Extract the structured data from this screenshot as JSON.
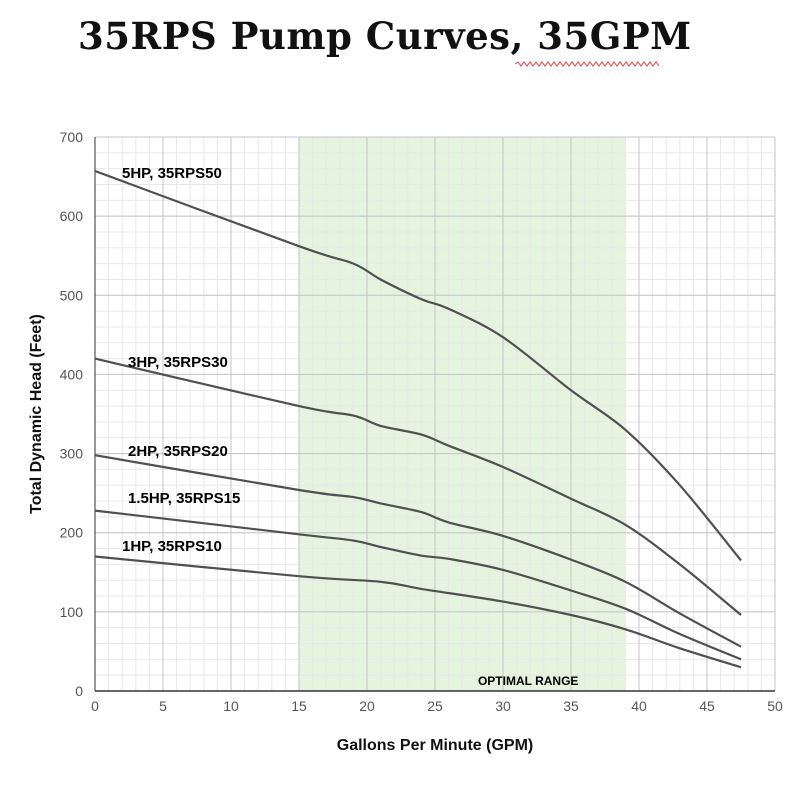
{
  "page": {
    "title": "35RPS Pump Curves, 35GPM"
  },
  "chart_data": {
    "type": "line",
    "title": "35RPS Pump Curves, 35GPM",
    "xlabel": "Gallons Per Minute (GPM)",
    "ylabel": "Total Dynamic Head (Feet)",
    "xlim": [
      0,
      50
    ],
    "ylim": [
      0,
      700
    ],
    "xticks": [
      0,
      5,
      10,
      15,
      20,
      25,
      30,
      35,
      40,
      45,
      50
    ],
    "yticks": [
      0,
      100,
      200,
      300,
      400,
      500,
      600,
      700
    ],
    "grid": true,
    "legend": "none",
    "line_color": "#505050",
    "highlight_band": {
      "x0": 15,
      "x1": 39,
      "label": "OPTIMAL RANGE",
      "color": "#e4f4de"
    },
    "series": [
      {
        "name": "5HP, 35RPS50",
        "x": [
          0,
          15,
          19,
          21,
          24,
          26,
          30,
          35,
          39,
          43,
          47.5
        ],
        "y": [
          657,
          562,
          540,
          520,
          495,
          483,
          447,
          380,
          330,
          260,
          165
        ]
      },
      {
        "name": "3HP, 35RPS30",
        "x": [
          0,
          15,
          19,
          21,
          24,
          26,
          30,
          35,
          39,
          43,
          47.5
        ],
        "y": [
          420,
          360,
          348,
          335,
          324,
          310,
          283,
          243,
          210,
          160,
          96
        ]
      },
      {
        "name": "2HP, 35RPS20",
        "x": [
          0,
          15,
          19,
          21,
          24,
          26,
          30,
          35,
          39,
          43,
          47.5
        ],
        "y": [
          298,
          254,
          245,
          237,
          226,
          213,
          196,
          166,
          138,
          98,
          56
        ]
      },
      {
        "name": "1.5HP, 35RPS15",
        "x": [
          0,
          15,
          19,
          21,
          24,
          26,
          30,
          35,
          39,
          43,
          47.5
        ],
        "y": [
          228,
          198,
          190,
          182,
          171,
          167,
          153,
          127,
          104,
          72,
          40
        ]
      },
      {
        "name": "1HP, 35RPS10",
        "x": [
          0,
          15,
          21,
          24,
          30,
          35,
          39,
          43,
          47.5
        ],
        "y": [
          170,
          145,
          138,
          129,
          113,
          96,
          78,
          54,
          30
        ]
      }
    ]
  }
}
